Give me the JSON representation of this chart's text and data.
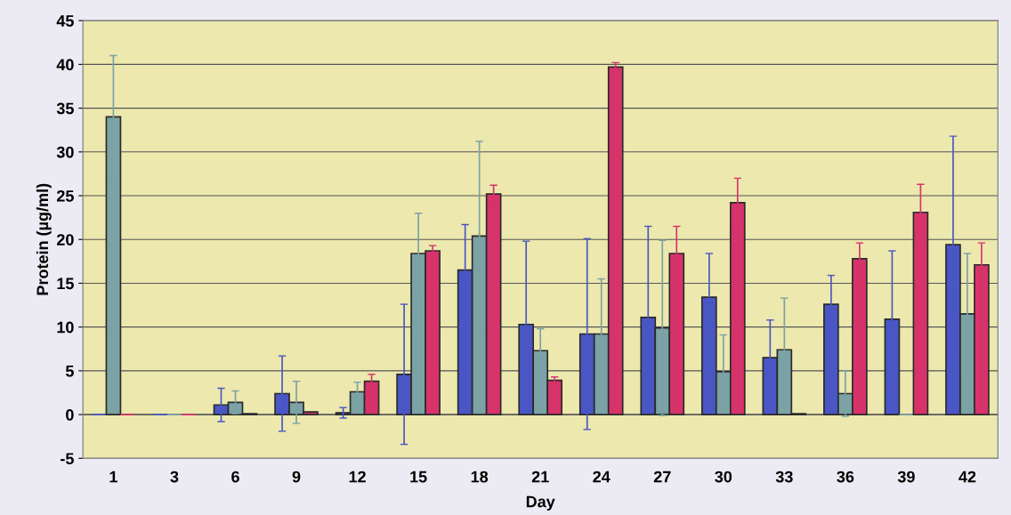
{
  "chart_data": {
    "type": "bar",
    "xlabel": "Day",
    "ylabel": "Protein (µg/ml)",
    "categories": [
      "1",
      "3",
      "6",
      "9",
      "12",
      "15",
      "18",
      "21",
      "24",
      "27",
      "30",
      "33",
      "36",
      "39",
      "42"
    ],
    "series": [
      {
        "color": "#4a56c4",
        "values": [
          0,
          0,
          1.1,
          2.4,
          0.2,
          4.6,
          16.5,
          10.3,
          9.2,
          11.1,
          13.4,
          6.5,
          12.6,
          10.9,
          19.4
        ],
        "errors": [
          null,
          null,
          1.9,
          4.3,
          0.6,
          8.0,
          5.2,
          9.5,
          10.9,
          10.4,
          5.0,
          4.3,
          3.3,
          7.8,
          12.4
        ]
      },
      {
        "color": "#7ba2a4",
        "values": [
          34,
          0,
          1.4,
          1.4,
          2.6,
          18.4,
          20.4,
          7.3,
          9.2,
          9.9,
          4.9,
          7.4,
          2.4,
          0,
          11.5
        ],
        "errors": [
          7.0,
          null,
          1.3,
          2.4,
          1.1,
          4.6,
          10.8,
          2.5,
          6.3,
          10.0,
          4.2,
          5.9,
          2.6,
          null,
          6.9
        ]
      },
      {
        "color": "#d6336b",
        "values": [
          0,
          0,
          0.1,
          0.3,
          3.8,
          18.7,
          25.2,
          3.9,
          39.7,
          18.4,
          24.2,
          0.1,
          17.8,
          23.1,
          17.1
        ],
        "errors": [
          null,
          null,
          null,
          null,
          0.8,
          0.6,
          1.0,
          0.4,
          0.5,
          3.1,
          2.8,
          null,
          1.8,
          3.2,
          2.5
        ]
      }
    ],
    "ylim": [
      -5,
      45
    ],
    "yticks": [
      -5,
      0,
      5,
      10,
      15,
      20,
      25,
      30,
      35,
      40,
      45
    ],
    "grid": "y"
  }
}
